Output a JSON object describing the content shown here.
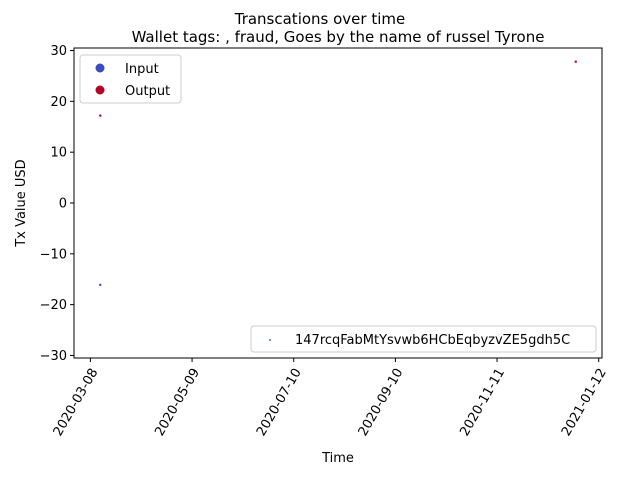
{
  "chart_data": {
    "type": "scatter",
    "title": "Transcations over time",
    "subtitle": "Wallet tags: , fraud, Goes by the name of russel Tyrone",
    "xlabel": "Time",
    "ylabel": "Tx Value USD",
    "x_range": [
      "2020-02-27",
      "2021-01-14"
    ],
    "xticks": [
      "2020-03-08",
      "2020-05-09",
      "2020-07-10",
      "2020-09-10",
      "2020-11-11",
      "2021-01-12"
    ],
    "ylim": [
      -30.5,
      30.5
    ],
    "yticks": [
      -30,
      -20,
      -10,
      0,
      10,
      20,
      30
    ],
    "ytick_labels": [
      "−30",
      "−20",
      "−10",
      "0",
      "10",
      "20",
      "30"
    ],
    "grid": false,
    "series": [
      {
        "name": "Input",
        "color": "#3b4cc0",
        "points": [
          {
            "x": "2020-03-14",
            "y": -16.1
          }
        ]
      },
      {
        "name": "Output",
        "color": "#b40426",
        "points": [
          {
            "x": "2020-03-14",
            "y": 17.2
          },
          {
            "x": "2020-12-29",
            "y": 27.8
          }
        ]
      }
    ],
    "legend": {
      "placement": "top-left",
      "items": [
        "Input",
        "Output"
      ]
    },
    "wallet_legend": {
      "placement": "bottom-right",
      "label": "147rcqFabMtYsvwb6HCbEqbyzvZE5gdh5C",
      "color": "#2a9d6a"
    }
  }
}
